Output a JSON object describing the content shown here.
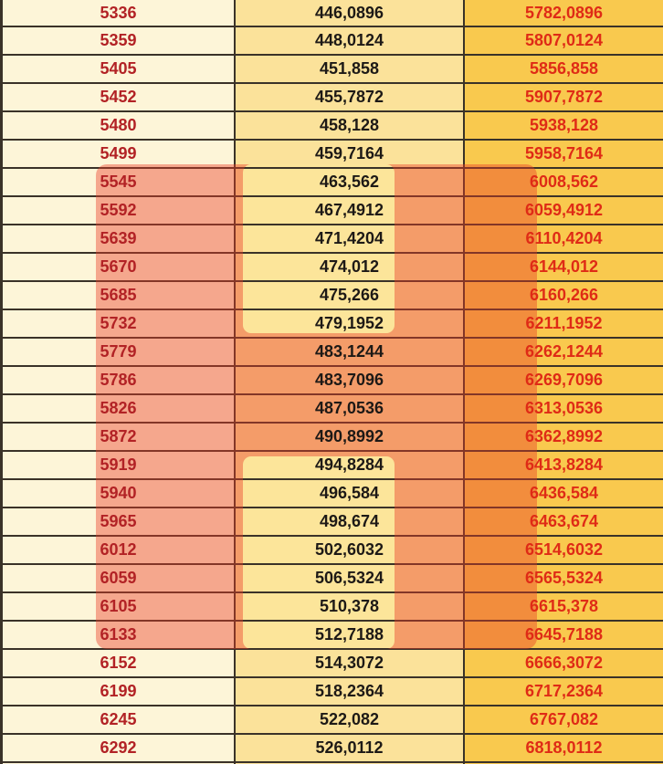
{
  "table": {
    "rows": [
      [
        "5336",
        "446,0896",
        "5782,0896"
      ],
      [
        "5359",
        "448,0124",
        "5807,0124"
      ],
      [
        "5405",
        "451,858",
        "5856,858"
      ],
      [
        "5452",
        "455,7872",
        "5907,7872"
      ],
      [
        "5480",
        "458,128",
        "5938,128"
      ],
      [
        "5499",
        "459,7164",
        "5958,7164"
      ],
      [
        "5545",
        "463,562",
        "6008,562"
      ],
      [
        "5592",
        "467,4912",
        "6059,4912"
      ],
      [
        "5639",
        "471,4204",
        "6110,4204"
      ],
      [
        "5670",
        "474,012",
        "6144,012"
      ],
      [
        "5685",
        "475,266",
        "6160,266"
      ],
      [
        "5732",
        "479,1952",
        "6211,1952"
      ],
      [
        "5779",
        "483,1244",
        "6262,1244"
      ],
      [
        "5786",
        "483,7096",
        "6269,7096"
      ],
      [
        "5826",
        "487,0536",
        "6313,0536"
      ],
      [
        "5872",
        "490,8992",
        "6362,8992"
      ],
      [
        "5919",
        "494,8284",
        "6413,8284"
      ],
      [
        "5940",
        "496,584",
        "6436,584"
      ],
      [
        "5965",
        "498,674",
        "6463,674"
      ],
      [
        "6012",
        "502,6032",
        "6514,6032"
      ],
      [
        "6059",
        "506,5324",
        "6565,5324"
      ],
      [
        "6105",
        "510,378",
        "6615,378"
      ],
      [
        "6133",
        "512,7188",
        "6645,7188"
      ],
      [
        "6152",
        "514,3072",
        "6666,3072"
      ],
      [
        "6199",
        "518,2364",
        "6717,2364"
      ],
      [
        "6245",
        "522,082",
        "6767,082"
      ],
      [
        "6292",
        "526,0112",
        "6818,0112"
      ]
    ]
  },
  "colors": {
    "col1_bg": "#FDF5D8",
    "col2_bg": "#FBE29A",
    "col3_bg": "#F9C94E",
    "col1_text": "#B22225",
    "col2_text": "#1D1916",
    "col3_text": "#DF2B16",
    "row_border": "#3A3228",
    "highlight_overlay": "rgba(233,60,38,0.42)",
    "highlight_gap_fill": "#FCE59A"
  }
}
